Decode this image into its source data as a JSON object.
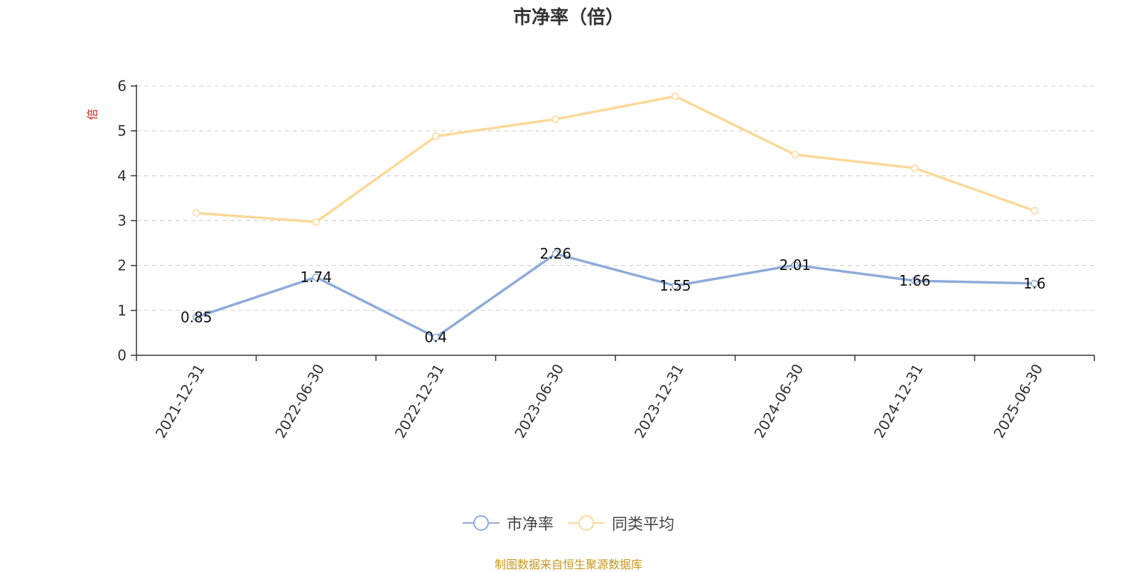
{
  "chart_data": {
    "type": "line",
    "title": "市净率（倍）",
    "unit_label": "倍",
    "categories": [
      "2021-12-31",
      "2022-06-30",
      "2022-12-31",
      "2023-06-30",
      "2023-12-31",
      "2024-06-30",
      "2024-12-31",
      "2025-06-30"
    ],
    "series": [
      {
        "name": "市净率",
        "color": "#8eabd8",
        "values": [
          0.85,
          1.74,
          0.4,
          2.26,
          1.55,
          2.01,
          1.66,
          1.6
        ],
        "show_labels": true
      },
      {
        "name": "同类平均",
        "color": "#fcd898",
        "values": [
          3.17,
          2.97,
          4.88,
          5.26,
          5.77,
          4.47,
          4.17,
          3.22
        ],
        "show_labels": false
      }
    ],
    "ylim": [
      0,
      6
    ],
    "yticks": [
      0,
      1,
      2,
      3,
      4,
      5,
      6
    ],
    "grid": true,
    "legend_position": "bottom"
  },
  "source_note": "制图数据来自恒生聚源数据库"
}
